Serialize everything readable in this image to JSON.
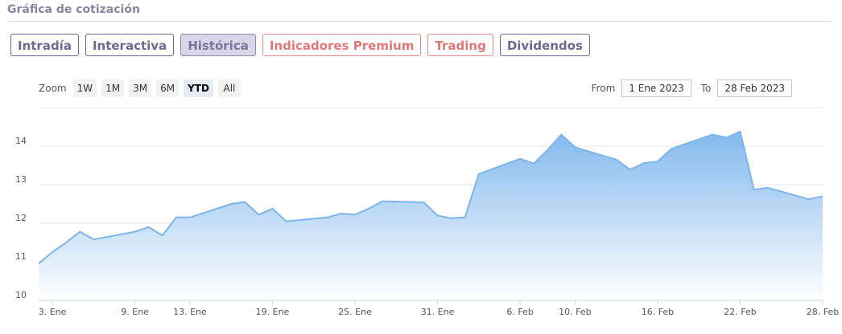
{
  "section_title": "Gráfica de cotización",
  "tabs": [
    {
      "label": "Intradía",
      "state": "normal"
    },
    {
      "label": "Interactiva",
      "state": "normal"
    },
    {
      "label": "Histórica",
      "state": "active"
    },
    {
      "label": "Indicadores Premium",
      "state": "premium"
    },
    {
      "label": "Trading",
      "state": "premium"
    },
    {
      "label": "Dividendos",
      "state": "normal"
    }
  ],
  "zoom": {
    "label": "Zoom",
    "buttons": [
      "1W",
      "1M",
      "3M",
      "6M",
      "YTD",
      "All"
    ],
    "selected": "YTD"
  },
  "date_range": {
    "from_label": "From",
    "from_value": "1 Ene 2023",
    "to_label": "To",
    "to_value": "28 Feb 2023"
  },
  "colors": {
    "line": "#7cb5ec",
    "area_top": "#7cb5ec",
    "area_bottom": "#ffffff",
    "grid": "#e6e6e6"
  },
  "chart_data": {
    "type": "area",
    "title": "",
    "xlabel": "",
    "ylabel": "",
    "ylim": [
      10,
      15
    ],
    "yticks": [
      10,
      11,
      12,
      13,
      14
    ],
    "x_ticks": [
      {
        "label": "3. Ene",
        "date": "2023-01-03"
      },
      {
        "label": "9. Ene",
        "date": "2023-01-09"
      },
      {
        "label": "13. Ene",
        "date": "2023-01-13"
      },
      {
        "label": "19. Ene",
        "date": "2023-01-19"
      },
      {
        "label": "25. Ene",
        "date": "2023-01-25"
      },
      {
        "label": "31. Ene",
        "date": "2023-01-31"
      },
      {
        "label": "6. Feb",
        "date": "2023-02-06"
      },
      {
        "label": "10. Feb",
        "date": "2023-02-10"
      },
      {
        "label": "16. Feb",
        "date": "2023-02-16"
      },
      {
        "label": "22. Feb",
        "date": "2023-02-22"
      },
      {
        "label": "28. Feb",
        "date": "2023-02-28"
      }
    ],
    "series": [
      {
        "dates": [
          "2023-01-02",
          "2023-01-03",
          "2023-01-04",
          "2023-01-05",
          "2023-01-06",
          "2023-01-09",
          "2023-01-10",
          "2023-01-11",
          "2023-01-12",
          "2023-01-13",
          "2023-01-16",
          "2023-01-17",
          "2023-01-18",
          "2023-01-19",
          "2023-01-20",
          "2023-01-23",
          "2023-01-24",
          "2023-01-25",
          "2023-01-26",
          "2023-01-27",
          "2023-01-30",
          "2023-01-31",
          "2023-02-01",
          "2023-02-02",
          "2023-02-03",
          "2023-02-06",
          "2023-02-07",
          "2023-02-08",
          "2023-02-09",
          "2023-02-10",
          "2023-02-13",
          "2023-02-14",
          "2023-02-15",
          "2023-02-16",
          "2023-02-17",
          "2023-02-20",
          "2023-02-21",
          "2023-02-22",
          "2023-02-23",
          "2023-02-24",
          "2023-02-27",
          "2023-02-28"
        ],
        "values": [
          10.95,
          11.25,
          11.5,
          11.78,
          11.58,
          11.78,
          11.9,
          11.68,
          12.15,
          12.15,
          12.5,
          12.55,
          12.22,
          12.38,
          12.05,
          12.15,
          12.25,
          12.22,
          12.38,
          12.57,
          12.54,
          12.2,
          12.13,
          12.15,
          13.28,
          13.67,
          13.55,
          13.9,
          14.3,
          13.97,
          13.65,
          13.39,
          13.56,
          13.6,
          13.93,
          14.3,
          14.22,
          14.38,
          12.87,
          12.92,
          12.62,
          12.7
        ]
      }
    ]
  }
}
